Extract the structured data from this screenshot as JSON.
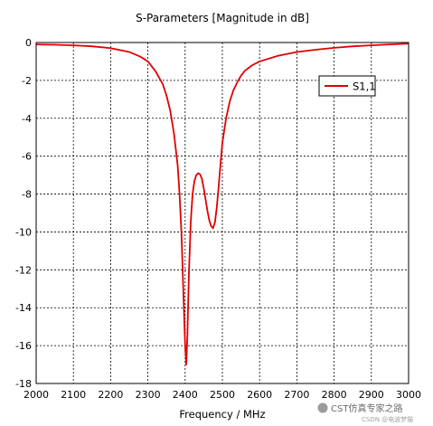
{
  "chart_data": {
    "type": "line",
    "title": "S-Parameters [Magnitude in dB]",
    "xlabel": "Frequency / MHz",
    "ylabel": "",
    "xlim": [
      2000,
      3000
    ],
    "ylim": [
      -18,
      0
    ],
    "xticks": [
      2000,
      2100,
      2200,
      2300,
      2400,
      2500,
      2600,
      2700,
      2800,
      2900,
      3000
    ],
    "yticks": [
      0,
      -2,
      -4,
      -6,
      -8,
      -10,
      -12,
      -14,
      -16,
      -18
    ],
    "grid": true,
    "legend_position": "top-right",
    "series": [
      {
        "name": "S1,1",
        "color": "#e00000",
        "x": [
          2000,
          2050,
          2100,
          2150,
          2200,
          2250,
          2280,
          2300,
          2320,
          2340,
          2350,
          2360,
          2370,
          2380,
          2385,
          2390,
          2395,
          2400,
          2403,
          2406,
          2410,
          2415,
          2420,
          2425,
          2430,
          2435,
          2440,
          2445,
          2450,
          2455,
          2460,
          2465,
          2470,
          2475,
          2480,
          2485,
          2490,
          2495,
          2500,
          2510,
          2520,
          2530,
          2540,
          2550,
          2560,
          2580,
          2600,
          2650,
          2700,
          2750,
          2800,
          2850,
          2900,
          2950,
          3000
        ],
        "values": [
          -0.1,
          -0.12,
          -0.15,
          -0.2,
          -0.3,
          -0.5,
          -0.75,
          -1.0,
          -1.5,
          -2.2,
          -2.8,
          -3.6,
          -4.8,
          -6.5,
          -8.0,
          -10.0,
          -13.0,
          -16.0,
          -17.0,
          -15.5,
          -12.3,
          -9.5,
          -8.0,
          -7.3,
          -7.0,
          -6.9,
          -6.95,
          -7.2,
          -7.7,
          -8.3,
          -8.9,
          -9.4,
          -9.7,
          -9.8,
          -9.5,
          -8.7,
          -7.6,
          -6.4,
          -5.3,
          -4.0,
          -3.1,
          -2.5,
          -2.1,
          -1.75,
          -1.5,
          -1.2,
          -1.0,
          -0.7,
          -0.5,
          -0.38,
          -0.28,
          -0.2,
          -0.15,
          -0.1,
          -0.06
        ]
      }
    ]
  },
  "watermark": {
    "text": "CST仿真专家之路",
    "subtext": "CSDN @电波梦猫"
  }
}
